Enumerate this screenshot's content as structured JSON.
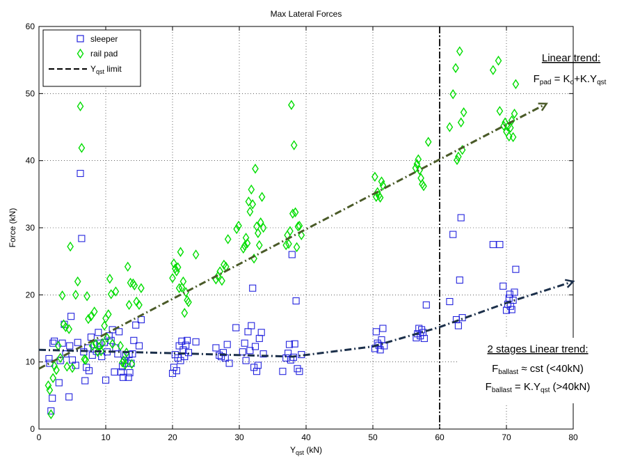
{
  "chart_data": {
    "type": "scatter",
    "title": "Max Lateral Forces",
    "xlabel": {
      "main": "Y",
      "sub": "qst",
      "unit": " (kN)"
    },
    "ylabel": "Force (kN)",
    "xlim": [
      0,
      80
    ],
    "ylim": [
      0,
      60
    ],
    "xticks": [
      "0",
      "10",
      "20",
      "30",
      "40",
      "50",
      "60",
      "70",
      "80"
    ],
    "yticks": [
      "0",
      "10",
      "20",
      "30",
      "40",
      "50",
      "60"
    ],
    "grid": true,
    "legend_position": "top-left",
    "legend": {
      "sleeper": "sleeper",
      "railpad": "rail pad",
      "limit_main": "Y",
      "limit_sub": "qst",
      "limit_tail": " limit"
    },
    "colors": {
      "sleeper": "#2222dd",
      "railpad": "#00dd00",
      "pad_trend": "#4a5a28",
      "ballast_trend": "#1b2f4a",
      "limit": "#000000"
    },
    "limit_x": 60,
    "pad_trend": [
      [
        0,
        9
      ],
      [
        76,
        48.5
      ]
    ],
    "ballast_trend": [
      [
        0,
        11.8
      ],
      [
        20,
        11.3
      ],
      [
        38,
        10.8
      ],
      [
        50,
        12.3
      ],
      [
        60,
        15.2
      ],
      [
        70,
        18.8
      ],
      [
        80,
        22
      ]
    ],
    "annotations": {
      "pad_heading": "Linear trend:",
      "pad_formula": {
        "p1": "F",
        "s1": "pad",
        "p2": " = K",
        "s2": "o",
        "p3": "+K.Y",
        "s3": "qst"
      },
      "ballast_heading": "2 stages Linear trend:",
      "ballast_line1": {
        "p1": "F",
        "s1": "ballast",
        "p2": " ≈ cst  (<40kN)"
      },
      "ballast_line2": {
        "p1": "F",
        "s1": "ballast",
        "p2": " = K.Y",
        "s2": "qst",
        "p3": " (>40kN)"
      }
    },
    "series": [
      {
        "name": "sleeper",
        "points": [
          [
            1.5,
            10.5
          ],
          [
            1.6,
            9.8
          ],
          [
            1.8,
            2.7
          ],
          [
            2,
            4.6
          ],
          [
            2.1,
            12.8
          ],
          [
            2.3,
            13.1
          ],
          [
            3,
            6.9
          ],
          [
            3.2,
            10.2
          ],
          [
            3.5,
            12.8
          ],
          [
            3.8,
            15.6
          ],
          [
            4,
            11.2
          ],
          [
            4.5,
            4.8
          ],
          [
            4.6,
            12.4
          ],
          [
            4.8,
            16.8
          ],
          [
            5,
            10.3
          ],
          [
            5.5,
            9.5
          ],
          [
            5.8,
            12.9
          ],
          [
            6.2,
            38.1
          ],
          [
            6.4,
            28.4
          ],
          [
            6.7,
            11.5
          ],
          [
            6.9,
            7.2
          ],
          [
            7.1,
            9.2
          ],
          [
            7.3,
            12.1
          ],
          [
            7.5,
            8.7
          ],
          [
            7.8,
            13.7
          ],
          [
            8,
            11
          ],
          [
            8.3,
            12.6
          ],
          [
            8.6,
            11.6
          ],
          [
            8.9,
            14.4
          ],
          [
            9.1,
            12.8
          ],
          [
            9.4,
            10.8
          ],
          [
            9.8,
            12.9
          ],
          [
            10,
            7.3
          ],
          [
            10.2,
            11.5
          ],
          [
            10.5,
            13.9
          ],
          [
            10.8,
            13.2
          ],
          [
            11,
            14.8
          ],
          [
            11.3,
            8.5
          ],
          [
            11.5,
            12.1
          ],
          [
            11.8,
            11.2
          ],
          [
            12,
            14.5
          ],
          [
            12.3,
            8.5
          ],
          [
            12.5,
            9.3
          ],
          [
            12.6,
            7.7
          ],
          [
            12.8,
            10.2
          ],
          [
            13,
            10.9
          ],
          [
            13.2,
            9.8
          ],
          [
            13.4,
            7.7
          ],
          [
            13.5,
            11.1
          ],
          [
            13.6,
            8.4
          ],
          [
            13.8,
            9.8
          ],
          [
            14,
            11.2
          ],
          [
            14.2,
            13.2
          ],
          [
            14.5,
            15.5
          ],
          [
            15,
            12.4
          ],
          [
            15.3,
            16.3
          ],
          [
            20,
            8.3
          ],
          [
            20.2,
            9.2
          ],
          [
            20.4,
            11.1
          ],
          [
            20.6,
            8.7
          ],
          [
            20.8,
            10.6
          ],
          [
            21,
            12.4
          ],
          [
            21.2,
            10.2
          ],
          [
            21.4,
            13.1
          ],
          [
            21.6,
            11.8
          ],
          [
            21.8,
            10.8
          ],
          [
            22,
            12.5
          ],
          [
            22.2,
            13.2
          ],
          [
            22.4,
            11.4
          ],
          [
            23.5,
            13
          ],
          [
            26.5,
            12.1
          ],
          [
            27,
            11
          ],
          [
            27.3,
            10.8
          ],
          [
            27.6,
            11.4
          ],
          [
            27.9,
            10.6
          ],
          [
            28.2,
            12.6
          ],
          [
            28.5,
            9.8
          ],
          [
            29.5,
            15.1
          ],
          [
            30.5,
            11.5
          ],
          [
            30.8,
            12.8
          ],
          [
            31,
            10.2
          ],
          [
            31.3,
            14.5
          ],
          [
            31.6,
            11.7
          ],
          [
            31.8,
            15.4
          ],
          [
            32,
            21
          ],
          [
            32.2,
            9.2
          ],
          [
            32.4,
            12.3
          ],
          [
            32.6,
            8.6
          ],
          [
            32.8,
            9.5
          ],
          [
            33,
            13.5
          ],
          [
            33.3,
            14.4
          ],
          [
            33.6,
            11.2
          ],
          [
            36.5,
            8.6
          ],
          [
            37,
            10.6
          ],
          [
            37.3,
            11.3
          ],
          [
            37.5,
            12.6
          ],
          [
            37.7,
            10.3
          ],
          [
            37.9,
            26
          ],
          [
            38.1,
            10.7
          ],
          [
            38.3,
            12.7
          ],
          [
            38.5,
            19.1
          ],
          [
            38.7,
            9
          ],
          [
            39,
            8.6
          ],
          [
            39.3,
            11.1
          ],
          [
            50.3,
            12
          ],
          [
            50.5,
            14.5
          ],
          [
            50.7,
            12.8
          ],
          [
            50.9,
            12.5
          ],
          [
            51.1,
            11.8
          ],
          [
            51.3,
            13.3
          ],
          [
            51.5,
            15
          ],
          [
            51.7,
            12.4
          ],
          [
            56.5,
            13.6
          ],
          [
            56.7,
            14.2
          ],
          [
            56.9,
            15
          ],
          [
            57.1,
            13.9
          ],
          [
            57.3,
            14.8
          ],
          [
            57.5,
            14.4
          ],
          [
            57.7,
            13.5
          ],
          [
            58,
            18.5
          ],
          [
            61.5,
            19
          ],
          [
            62,
            29
          ],
          [
            62.5,
            16.3
          ],
          [
            62.8,
            15.4
          ],
          [
            63,
            22.2
          ],
          [
            63.2,
            31.5
          ],
          [
            63.4,
            16.6
          ],
          [
            68,
            27.5
          ],
          [
            69,
            27.5
          ],
          [
            69.5,
            21.3
          ],
          [
            70,
            17.7
          ],
          [
            70.2,
            18.6
          ],
          [
            70.4,
            19.5
          ],
          [
            70.5,
            20.1
          ],
          [
            70.6,
            18.3
          ],
          [
            70.8,
            17.8
          ],
          [
            71,
            19.2
          ],
          [
            71.2,
            20.4
          ],
          [
            71.4,
            23.8
          ]
        ]
      },
      {
        "name": "rail pad",
        "points": [
          [
            1.4,
            6.5
          ],
          [
            1.6,
            5.8
          ],
          [
            1.8,
            2.2
          ],
          [
            2.1,
            7.6
          ],
          [
            2.3,
            9.4
          ],
          [
            2.6,
            8.8
          ],
          [
            2.9,
            12.4
          ],
          [
            3.2,
            10.6
          ],
          [
            3.5,
            19.9
          ],
          [
            3.7,
            15.6
          ],
          [
            4,
            15.2
          ],
          [
            4.2,
            9.3
          ],
          [
            4.5,
            14.9
          ],
          [
            4.7,
            27.2
          ],
          [
            5,
            9.1
          ],
          [
            5.5,
            20
          ],
          [
            5.8,
            22
          ],
          [
            6.2,
            48.1
          ],
          [
            6.4,
            41.9
          ],
          [
            6.8,
            10.4
          ],
          [
            7,
            10.3
          ],
          [
            7.2,
            19.8
          ],
          [
            7.4,
            16.4
          ],
          [
            7.8,
            16.8
          ],
          [
            8,
            12.4
          ],
          [
            8.3,
            17.5
          ],
          [
            8.5,
            12.7
          ],
          [
            8.8,
            11.5
          ],
          [
            9,
            12.2
          ],
          [
            9.3,
            11.6
          ],
          [
            9.5,
            12.8
          ],
          [
            9.8,
            15.4
          ],
          [
            10,
            16.5
          ],
          [
            10.2,
            13.6
          ],
          [
            10.4,
            17.1
          ],
          [
            10.6,
            22.4
          ],
          [
            10.8,
            20.1
          ],
          [
            11,
            12.7
          ],
          [
            11.5,
            20.5
          ],
          [
            12.2,
            12.4
          ],
          [
            12.5,
            9.9
          ],
          [
            12.7,
            10.2
          ],
          [
            12.9,
            9.6
          ],
          [
            13.1,
            11.4
          ],
          [
            13.3,
            24.2
          ],
          [
            13.5,
            18.5
          ],
          [
            13.7,
            21.8
          ],
          [
            13.9,
            9.7
          ],
          [
            14.1,
            21.7
          ],
          [
            14.3,
            21.4
          ],
          [
            14.6,
            19
          ],
          [
            15,
            18.5
          ],
          [
            15.3,
            21
          ],
          [
            20,
            22.5
          ],
          [
            20.2,
            24.7
          ],
          [
            20.4,
            23.9
          ],
          [
            20.6,
            23.5
          ],
          [
            20.8,
            24.1
          ],
          [
            21,
            21
          ],
          [
            21.2,
            26.4
          ],
          [
            21.4,
            21.1
          ],
          [
            21.6,
            22
          ],
          [
            21.8,
            17.3
          ],
          [
            22,
            20.4
          ],
          [
            22.2,
            19.2
          ],
          [
            22.4,
            18.9
          ],
          [
            23.5,
            26
          ],
          [
            26.5,
            22.3
          ],
          [
            26.8,
            22.8
          ],
          [
            27.1,
            23.5
          ],
          [
            27.4,
            22.1
          ],
          [
            27.7,
            24.5
          ],
          [
            28,
            24.2
          ],
          [
            28.3,
            28.3
          ],
          [
            29.6,
            29.8
          ],
          [
            29.9,
            30.3
          ],
          [
            30.6,
            26.9
          ],
          [
            30.8,
            27.3
          ],
          [
            31,
            28.5
          ],
          [
            31.2,
            27.7
          ],
          [
            31.4,
            33.9
          ],
          [
            31.6,
            32.4
          ],
          [
            31.8,
            35.7
          ],
          [
            32,
            33.5
          ],
          [
            32.2,
            25.4
          ],
          [
            32.4,
            38.8
          ],
          [
            32.6,
            30.2
          ],
          [
            32.8,
            29.2
          ],
          [
            33,
            27.4
          ],
          [
            33.2,
            30.8
          ],
          [
            33.4,
            34.6
          ],
          [
            33.6,
            30
          ],
          [
            37,
            27.4
          ],
          [
            37.2,
            28.9
          ],
          [
            37.4,
            27.6
          ],
          [
            37.6,
            29.5
          ],
          [
            37.8,
            48.3
          ],
          [
            38,
            32.1
          ],
          [
            38.2,
            42.3
          ],
          [
            38.4,
            32.3
          ],
          [
            38.6,
            27.1
          ],
          [
            38.8,
            30.2
          ],
          [
            39,
            30.3
          ],
          [
            39.3,
            28.9
          ],
          [
            50.3,
            37.6
          ],
          [
            50.5,
            34.6
          ],
          [
            50.7,
            35.3
          ],
          [
            50.9,
            34.8
          ],
          [
            51.1,
            34.5
          ],
          [
            51.3,
            36.9
          ],
          [
            51.5,
            36.3
          ],
          [
            56.4,
            38.9
          ],
          [
            56.6,
            39.5
          ],
          [
            56.8,
            40.2
          ],
          [
            57,
            38.6
          ],
          [
            57.2,
            37.4
          ],
          [
            57.4,
            36.5
          ],
          [
            57.6,
            36.2
          ],
          [
            58.3,
            42.8
          ],
          [
            61.5,
            45
          ],
          [
            62,
            49.9
          ],
          [
            62.4,
            53.8
          ],
          [
            62.6,
            40.1
          ],
          [
            62.8,
            40.6
          ],
          [
            63,
            56.3
          ],
          [
            63.2,
            45.7
          ],
          [
            63.4,
            41.6
          ],
          [
            63.6,
            47.2
          ],
          [
            68,
            53.5
          ],
          [
            68.8,
            54.9
          ],
          [
            69,
            47.4
          ],
          [
            69.6,
            45.2
          ],
          [
            69.8,
            45.7
          ],
          [
            70,
            44.3
          ],
          [
            70.2,
            45.1
          ],
          [
            70.4,
            43.6
          ],
          [
            70.6,
            44.9
          ],
          [
            70.8,
            46
          ],
          [
            71,
            43.5
          ],
          [
            71.2,
            47
          ],
          [
            71.4,
            51.4
          ]
        ]
      }
    ]
  }
}
